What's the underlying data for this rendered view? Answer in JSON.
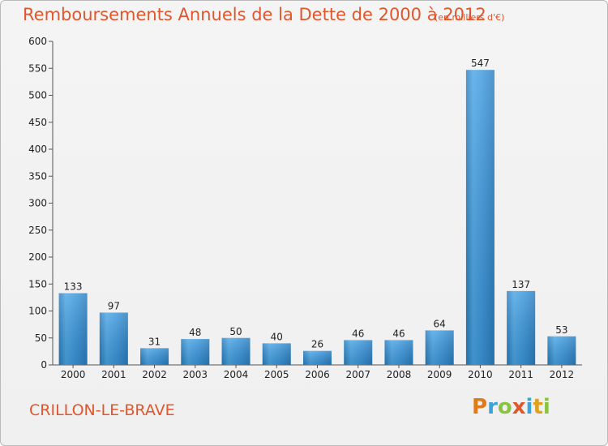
{
  "header": {
    "title": "Remboursements Annuels de la Dette de 2000 à 2012",
    "subtitle": "(en milliers d'€)"
  },
  "footer": {
    "commune": "CRILLON-LE-BRAVE",
    "logo_letters": [
      "P",
      "r",
      "o",
      "x",
      "i",
      "t",
      "i"
    ]
  },
  "colors": {
    "bar": "#3a96dc",
    "bar_light": "#5aaeea",
    "bar_dark": "#2a7ec0",
    "accent": "#e0562d",
    "logo": [
      "#e07a18",
      "#3aa3d8",
      "#8ac43f",
      "#e0562d",
      "#3aa3d8",
      "#e0a020",
      "#8ac43f"
    ]
  },
  "chart_data": {
    "type": "bar",
    "title": "Remboursements Annuels de la Dette de 2000 à 2012",
    "subtitle": "(en milliers d'€)",
    "categories": [
      "2000",
      "2001",
      "2002",
      "2003",
      "2004",
      "2005",
      "2006",
      "2007",
      "2008",
      "2009",
      "2010",
      "2011",
      "2012"
    ],
    "values": [
      133,
      97,
      31,
      48,
      50,
      40,
      26,
      46,
      46,
      64,
      547,
      137,
      53
    ],
    "ylim": [
      0,
      600
    ],
    "yticks": [
      0,
      50,
      100,
      150,
      200,
      250,
      300,
      350,
      400,
      450,
      500,
      550,
      600
    ],
    "grid": false,
    "data_labels": true
  }
}
